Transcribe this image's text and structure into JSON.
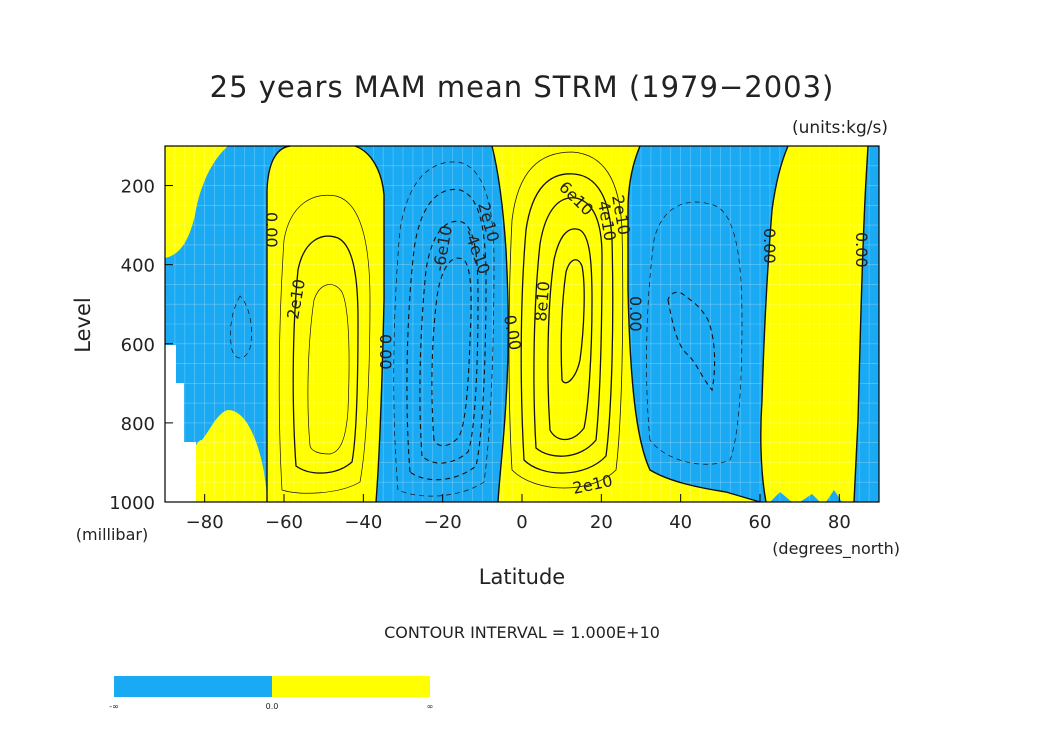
{
  "chart_data": {
    "type": "contour",
    "title": "25 years MAM mean STRM (1979−2003)",
    "units_label": "(units:kg/s)",
    "xlabel": "Latitude",
    "x_units": "(degrees_north)",
    "ylabel": "Level",
    "y_units": "(millibar)",
    "xlim": [
      -90,
      90
    ],
    "ylim": [
      1000,
      100
    ],
    "y_axis_inverted": true,
    "x_ticks": [
      -80,
      -60,
      -40,
      -20,
      0,
      20,
      40,
      60,
      80
    ],
    "x_tick_labels": [
      "−80",
      "−60",
      "−40",
      "−20",
      "0",
      "20",
      "40",
      "60",
      "80"
    ],
    "y_ticks": [
      200,
      400,
      600,
      800,
      1000
    ],
    "y_tick_labels": [
      "200",
      "400",
      "600",
      "800",
      "1000"
    ],
    "contour_interval": 10000000000,
    "contour_interval_text": "CONTOUR INTERVAL = 1.000E+10",
    "fill_colors": {
      "negative": "#19aaf3",
      "positive": "#ffff00"
    },
    "contour_labels": [
      "0.00",
      "2e10",
      "-4e10",
      "-6e10",
      "2e10",
      "4e10",
      "6e10",
      "8e10"
    ],
    "cells": [
      {
        "name": "southern-polar-cell",
        "sign": "negative",
        "lat_range": [
          -90,
          -65
        ],
        "center": [
          -75,
          650
        ],
        "peak_label": ""
      },
      {
        "name": "southern-ferrel-cell",
        "sign": "positive",
        "lat_range": [
          -63,
          -35
        ],
        "center": [
          -48,
          650
        ],
        "peak_label": "2e10"
      },
      {
        "name": "southern-hadley-cell",
        "sign": "negative",
        "lat_range": [
          -33,
          -1
        ],
        "center": [
          -16,
          550
        ],
        "peak_label": "-6e10"
      },
      {
        "name": "northern-hadley-cell",
        "sign": "positive",
        "lat_range": [
          -1,
          28
        ],
        "center": [
          12,
          500
        ],
        "peak_label": "8e10"
      },
      {
        "name": "northern-ferrel-cell",
        "sign": "negative",
        "lat_range": [
          29,
          60
        ],
        "center": [
          44,
          600
        ],
        "peak_label": ""
      },
      {
        "name": "northern-polar-cell",
        "sign": "positive",
        "lat_range": [
          61,
          87
        ],
        "center": [
          74,
          550
        ],
        "peak_label": ""
      }
    ],
    "colorbar": {
      "labels": [
        "-∞",
        "0.0",
        "∞"
      ],
      "colors": [
        "#19aaf3",
        "#ffff00"
      ]
    },
    "grid": true
  }
}
